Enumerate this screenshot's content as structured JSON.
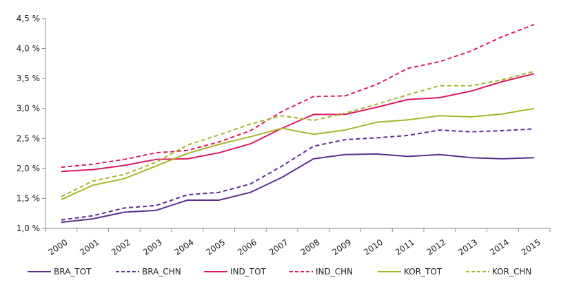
{
  "chart_data": {
    "type": "line",
    "title": "",
    "xlabel": "",
    "ylabel": "",
    "ylim": [
      1.0,
      4.5
    ],
    "y_ticks": [
      1.0,
      1.5,
      2.0,
      2.5,
      3.0,
      3.5,
      4.0,
      4.5
    ],
    "y_tick_labels": [
      "1,0 %",
      "1,5 %",
      "2,0 %",
      "2,5 %",
      "3,0 %",
      "3,5 %",
      "4,0 %",
      "4,5 %"
    ],
    "categories": [
      "2000",
      "2001",
      "2002",
      "2003",
      "2004",
      "2005",
      "2006",
      "2007",
      "2008",
      "2009",
      "2010",
      "2011",
      "2012",
      "2013",
      "2014",
      "2015"
    ],
    "grid": false,
    "legend_position": "bottom",
    "series": [
      {
        "name": "BRA_TOT",
        "color": "#5b2d90",
        "dash": "solid",
        "values": [
          1.1,
          1.16,
          1.27,
          1.3,
          1.47,
          1.47,
          1.6,
          1.85,
          2.16,
          2.23,
          2.24,
          2.2,
          2.23,
          2.18,
          2.16,
          2.18
        ]
      },
      {
        "name": "BRA_CHN",
        "color": "#5b2d90",
        "dash": "dashed",
        "values": [
          1.14,
          1.21,
          1.34,
          1.38,
          1.56,
          1.6,
          1.74,
          2.04,
          2.37,
          2.48,
          2.51,
          2.55,
          2.64,
          2.61,
          2.63,
          2.66
        ]
      },
      {
        "name": "IND_TOT",
        "color": "#e0185c",
        "dash": "solid",
        "values": [
          1.95,
          1.98,
          2.05,
          2.15,
          2.16,
          2.26,
          2.41,
          2.67,
          2.9,
          2.9,
          3.02,
          3.15,
          3.18,
          3.29,
          3.45,
          3.58
        ]
      },
      {
        "name": "IND_CHN",
        "color": "#e0185c",
        "dash": "dashed",
        "values": [
          2.02,
          2.07,
          2.15,
          2.26,
          2.3,
          2.44,
          2.63,
          2.95,
          3.2,
          3.21,
          3.4,
          3.67,
          3.78,
          3.96,
          4.2,
          4.4
        ]
      },
      {
        "name": "KOR_TOT",
        "color": "#a8b42a",
        "dash": "solid",
        "values": [
          1.48,
          1.72,
          1.83,
          2.04,
          2.25,
          2.4,
          2.53,
          2.67,
          2.57,
          2.64,
          2.77,
          2.81,
          2.88,
          2.86,
          2.91,
          3.0
        ]
      },
      {
        "name": "KOR_CHN",
        "color": "#a8b42a",
        "dash": "dashed",
        "values": [
          1.53,
          1.79,
          1.9,
          2.1,
          2.39,
          2.56,
          2.74,
          2.88,
          2.8,
          2.92,
          3.07,
          3.23,
          3.38,
          3.38,
          3.48,
          3.62
        ]
      }
    ]
  }
}
